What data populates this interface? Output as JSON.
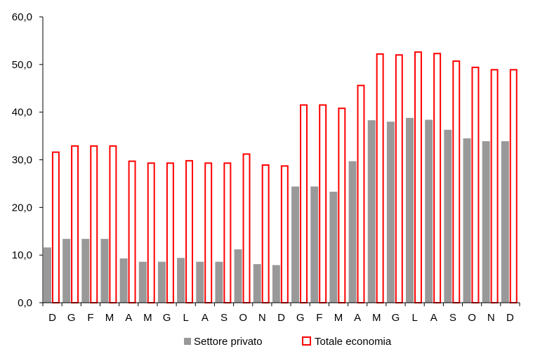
{
  "chart_data": {
    "type": "bar",
    "title": "",
    "xlabel": "",
    "ylabel": "",
    "ylim": [
      0,
      60
    ],
    "yticks": [
      "0,0",
      "10,0",
      "20,0",
      "30,0",
      "40,0",
      "50,0",
      "60,0"
    ],
    "grid": false,
    "legend_position": "bottom",
    "categories": [
      "D",
      "G",
      "F",
      "M",
      "A",
      "M",
      "G",
      "L",
      "A",
      "S",
      "O",
      "N",
      "D",
      "G",
      "F",
      "M",
      "A",
      "M",
      "G",
      "L",
      "A",
      "S",
      "O",
      "N",
      "D"
    ],
    "series": [
      {
        "name": "Settore privato",
        "color": "#999999",
        "style": "filled",
        "values": [
          11.6,
          13.4,
          13.4,
          13.4,
          9.3,
          8.6,
          8.6,
          9.4,
          8.6,
          8.6,
          11.2,
          8.1,
          7.9,
          24.4,
          24.4,
          23.3,
          29.7,
          38.3,
          38.0,
          38.8,
          38.4,
          36.3,
          34.5,
          33.9,
          33.9
        ]
      },
      {
        "name": "Totale economia",
        "color": "#ff0000",
        "style": "outline",
        "values": [
          31.6,
          32.9,
          32.9,
          32.9,
          29.7,
          29.3,
          29.3,
          29.8,
          29.3,
          29.3,
          31.2,
          28.9,
          28.7,
          41.5,
          41.5,
          40.8,
          45.6,
          52.2,
          52.0,
          52.6,
          52.3,
          50.7,
          49.4,
          48.9,
          48.9
        ]
      }
    ]
  }
}
